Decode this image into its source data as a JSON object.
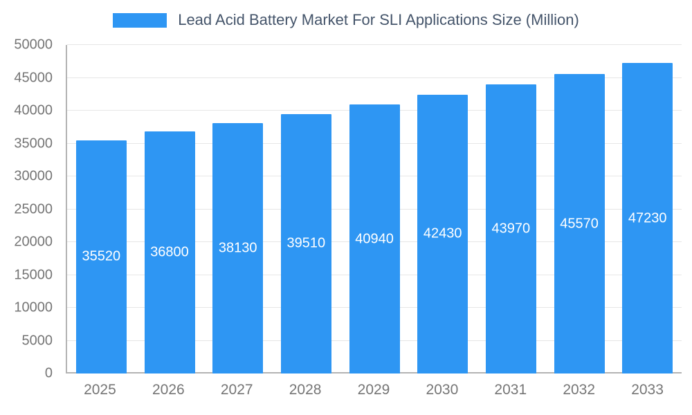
{
  "chart_data": {
    "type": "bar",
    "title": "Lead Acid Battery Market For SLI Applications Size (Million)",
    "categories": [
      "2025",
      "2026",
      "2027",
      "2028",
      "2029",
      "2030",
      "2031",
      "2032",
      "2033"
    ],
    "values": [
      35520,
      36800,
      38130,
      39510,
      40940,
      42430,
      43970,
      45570,
      47230
    ],
    "xlabel": "",
    "ylabel": "",
    "ylim": [
      0,
      50000
    ],
    "ytick_step": 5000,
    "grid": "horizontal",
    "legend_position": "top-center",
    "colors": {
      "bar": "#2E96F3",
      "bar_label_text": "#ffffff",
      "title_text": "#44546A",
      "tick_text": "#757575",
      "gridline": "#e6e6e6",
      "axis_line": "#b3b3b3",
      "background": "#ffffff"
    }
  }
}
